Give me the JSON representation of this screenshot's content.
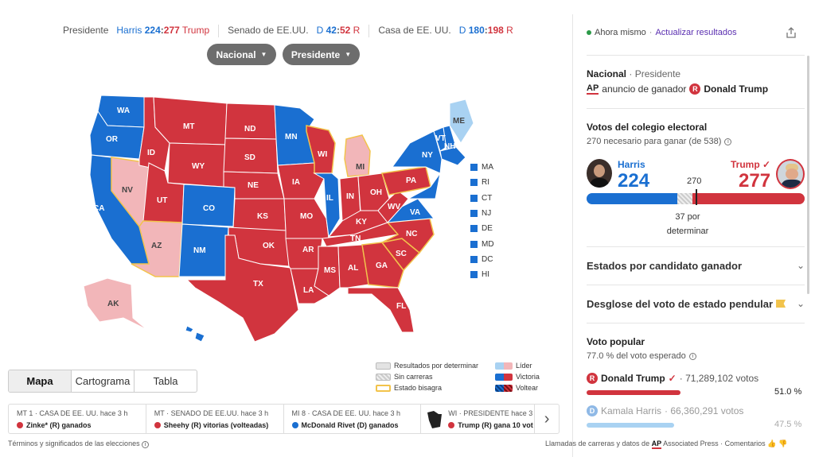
{
  "summary": {
    "president_label": "Presidente",
    "harris_name": "Harris",
    "harris_ev": "224",
    "sep": ":",
    "trump_ev": "277",
    "trump_name": "Trump",
    "senate_label": "Senado de EE.UU.",
    "senate_d": "D",
    "senate_d_val": "42",
    "senate_r_val": "52",
    "senate_r": "R",
    "house_label": "Casa de EE. UU.",
    "house_d": "D",
    "house_d_val": "180",
    "house_r_val": "198",
    "house_r": "R"
  },
  "filters": {
    "scope": "Nacional",
    "race": "Presidente"
  },
  "map": {
    "colors": {
      "dem": "#1a6fd1",
      "rep": "#d1343e",
      "rep_lead": "#f2b6b9",
      "dem_lead": "#a9d2f2",
      "swing": "#f2c34b"
    },
    "states": {
      "WA": "WA",
      "OR": "OR",
      "CA": "CA",
      "NV": "NV",
      "ID": "ID",
      "MT": "MT",
      "WY": "WY",
      "UT": "UT",
      "AZ": "AZ",
      "CO": "CO",
      "NM": "NM",
      "ND": "ND",
      "SD": "SD",
      "NE": "NE",
      "KS": "KS",
      "OK": "OK",
      "TX": "TX",
      "MN": "MN",
      "IA": "IA",
      "MO": "MO",
      "AR": "AR",
      "LA": "LA",
      "WI": "WI",
      "IL": "IL",
      "MI": "MI",
      "IN": "IN",
      "OH": "OH",
      "KY": "KY",
      "TN": "TN",
      "MS": "MS",
      "AL": "AL",
      "GA": "GA",
      "FL": "FL",
      "SC": "SC",
      "NC": "NC",
      "VA": "VA",
      "WV": "WV",
      "PA": "PA",
      "NY": "NY",
      "VT": "VT",
      "NH": "NH",
      "ME": "ME",
      "AK": "AK"
    },
    "small_states": [
      "MA",
      "RI",
      "CT",
      "NJ",
      "DE",
      "MD",
      "DC",
      "HI"
    ]
  },
  "tabs": [
    "Mapa",
    "Cartograma",
    "Tabla"
  ],
  "legend": {
    "pending": "Resultados por determinar",
    "no_race": "Sin carreras",
    "swing": "Estado bisagra",
    "leader": "Líder",
    "victory": "Victoria",
    "flip": "Voltear"
  },
  "ticker": [
    {
      "meta": "MT 1 · CASA DE EE. UU. hace 3 h",
      "text": "Zinke* (R) ganados",
      "party": "rep"
    },
    {
      "meta": "MT · SENADO DE EE.UU. hace 3 h",
      "text": "Sheehy (R) vitorias (volteadas)",
      "party": "rep"
    },
    {
      "meta": "MI 8 · CASA DE EE. UU. hace 3 h",
      "text": "McDonald Rivet (D) ganados",
      "party": "dem"
    },
    {
      "meta": "WI · PRESIDENTE hace 3",
      "text": "Trump (R) gana 10 vot",
      "party": "rep"
    }
  ],
  "footer": {
    "terms": "Términos y significados de las elecciones",
    "credits_pre": "Llamadas de carreras y datos de",
    "ap": "AP",
    "credits_post": "Associated Press · Comentarios"
  },
  "panel": {
    "status_now": "Ahora mismo",
    "dot_sep": " · ",
    "refresh": "Actualizar resultados",
    "race_scope": "Nacional",
    "race_type": "Presidente",
    "ap": "AP",
    "winner_announce": "anuncio de ganador",
    "r_badge": "R",
    "winner_name": "Donald Trump",
    "ec_title": "Votos del colegio electoral",
    "ec_sub": "270 necesario para ganar (de 538)",
    "harris_label": "Harris",
    "harris_votes": "224",
    "trump_label": "Trump",
    "trump_votes": "277",
    "threshold": "270",
    "pending_line1": "37 por",
    "pending_line2": "determinar",
    "ec_bar": {
      "dem": 224,
      "pending": 37,
      "rep": 277,
      "total": 538
    },
    "acc1": "Estados por candidato ganador",
    "acc2": "Desglose del voto de estado pendular",
    "pv_title": "Voto popular",
    "pv_sub": "77.0 % del voto esperado",
    "pv_trump_badge": "R",
    "pv_trump_name": "Donald Trump",
    "pv_trump_votes": " · 71,289,102 votos",
    "pv_trump_pct": "51.0 %",
    "pv_trump_frac": 0.51,
    "pv_harris_badge": "D",
    "pv_harris_name": "Kamala Harris",
    "pv_harris_votes": " · 66,360,291 votos",
    "pv_harris_pct": "47.5 %",
    "pv_harris_frac": 0.475
  }
}
